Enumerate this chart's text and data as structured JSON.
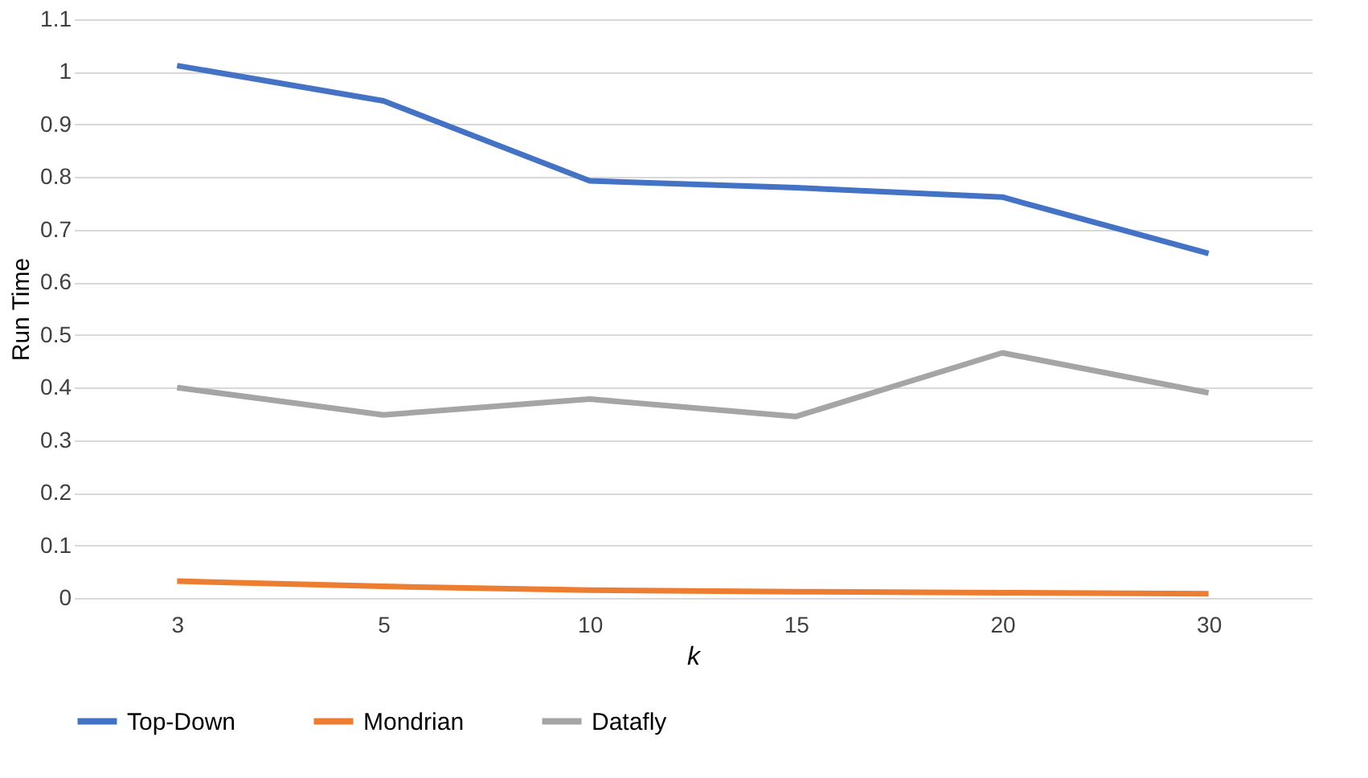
{
  "chart_data": {
    "type": "line",
    "xlabel": "k",
    "ylabel": "Run Time",
    "categories": [
      "3",
      "5",
      "10",
      "15",
      "20",
      "30"
    ],
    "series": [
      {
        "name": "Top-Down",
        "color": "#4472c4",
        "values": [
          1.012,
          0.945,
          0.793,
          0.78,
          0.762,
          0.655
        ]
      },
      {
        "name": "Mondrian",
        "color": "#ed7d31",
        "values": [
          0.032,
          0.022,
          0.015,
          0.012,
          0.01,
          0.008
        ]
      },
      {
        "name": "Datafly",
        "color": "#a5a5a5",
        "values": [
          0.4,
          0.348,
          0.378,
          0.345,
          0.466,
          0.39
        ]
      }
    ],
    "ylim": [
      0,
      1.1
    ],
    "yticks": [
      0,
      0.1,
      0.2,
      0.3,
      0.4,
      0.5,
      0.6,
      0.7,
      0.8,
      0.9,
      1,
      1.1
    ],
    "grid": "y",
    "legend": "bottom",
    "marker": "none",
    "line_style": "solid"
  }
}
